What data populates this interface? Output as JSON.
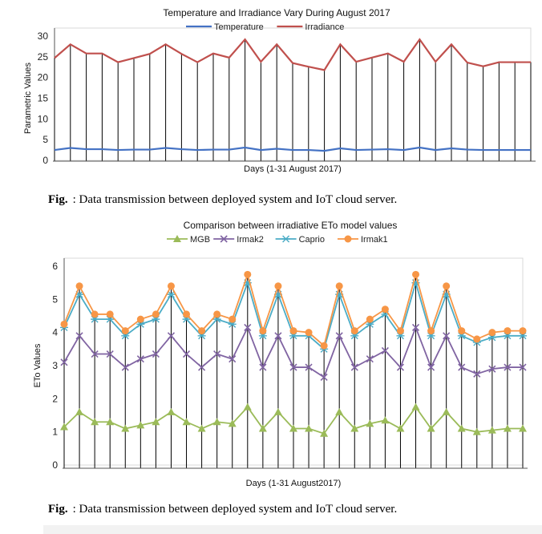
{
  "figures": [
    {
      "caption_label": "Fig.",
      "caption_text": ": Data transmission between deployed system and IoT cloud server."
    },
    {
      "caption_label": "Fig.",
      "caption_text": ": Data transmission between deployed system and IoT cloud server."
    }
  ],
  "chart_data": [
    {
      "type": "line",
      "title": "Temperature and Irradiance Vary During August 2017",
      "xlabel": "Days (1-31 August 2017)",
      "ylabel": "Parametric Values",
      "ylim": [
        0,
        30
      ],
      "yticks": [
        0,
        5,
        10,
        15,
        20,
        25,
        30
      ],
      "legend_position": "top-center",
      "grid": "vertical lines at each day",
      "x": [
        1,
        2,
        3,
        4,
        5,
        6,
        7,
        8,
        9,
        10,
        11,
        12,
        13,
        14,
        15,
        16,
        17,
        18,
        19,
        20,
        21,
        22,
        23,
        24,
        25,
        26,
        27,
        28,
        29,
        30,
        31
      ],
      "series": [
        {
          "name": "Temperature",
          "color": "#4472c4",
          "values": [
            2.5,
            3,
            2.7,
            2.7,
            2.5,
            2.6,
            2.6,
            3,
            2.7,
            2.5,
            2.6,
            2.6,
            3.1,
            2.5,
            2.8,
            2.5,
            2.5,
            2.3,
            2.9,
            2.5,
            2.6,
            2.7,
            2.5,
            3.1,
            2.5,
            2.9,
            2.6,
            2.5,
            2.5,
            2.5,
            2.5
          ]
        },
        {
          "name": "Irradiance",
          "color": "#c0504d",
          "values": [
            24.7,
            28,
            25.8,
            25.8,
            23.7,
            24.7,
            25.7,
            28,
            25.7,
            23.7,
            25.8,
            24.8,
            29.2,
            23.8,
            28,
            23.5,
            22.6,
            21.8,
            28,
            23.8,
            24.8,
            25.8,
            23.8,
            29.2,
            23.8,
            28,
            23.6,
            22.7,
            23.7,
            23.7,
            23.7
          ]
        }
      ]
    },
    {
      "type": "line",
      "title": "Comparison between irradiative ETo model values",
      "xlabel": "Days (1-31 August2017)",
      "ylabel": "ETo Values",
      "ylim": [
        0,
        6
      ],
      "yticks": [
        0,
        1,
        2,
        3,
        4,
        5,
        6
      ],
      "legend_position": "top-center",
      "grid": "vertical lines at each day",
      "x": [
        1,
        2,
        3,
        4,
        5,
        6,
        7,
        8,
        9,
        10,
        11,
        12,
        13,
        14,
        15,
        16,
        17,
        18,
        19,
        20,
        21,
        22,
        23,
        24,
        25,
        26,
        27,
        28,
        29,
        30,
        31
      ],
      "series": [
        {
          "name": "MGB",
          "color": "#9bbb59",
          "marker": "triangle",
          "values": [
            1.15,
            1.6,
            1.3,
            1.3,
            1.1,
            1.2,
            1.3,
            1.6,
            1.3,
            1.1,
            1.3,
            1.25,
            1.75,
            1.1,
            1.6,
            1.1,
            1.1,
            0.95,
            1.6,
            1.1,
            1.25,
            1.35,
            1.1,
            1.75,
            1.1,
            1.6,
            1.1,
            1.0,
            1.05,
            1.1,
            1.1
          ]
        },
        {
          "name": "Irmak2",
          "color": "#8064a2",
          "marker": "x",
          "values": [
            3.1,
            3.9,
            3.35,
            3.35,
            2.95,
            3.2,
            3.35,
            3.9,
            3.35,
            2.95,
            3.35,
            3.2,
            4.15,
            2.95,
            3.9,
            2.95,
            2.95,
            2.65,
            3.9,
            2.95,
            3.2,
            3.45,
            2.95,
            4.15,
            2.95,
            3.9,
            2.95,
            2.75,
            2.9,
            2.95,
            2.95
          ]
        },
        {
          "name": "Caprio",
          "color": "#4bacc6",
          "marker": "star",
          "values": [
            4.15,
            5.15,
            4.4,
            4.4,
            3.9,
            4.25,
            4.4,
            5.15,
            4.4,
            3.9,
            4.4,
            4.25,
            5.5,
            3.9,
            5.15,
            3.9,
            3.9,
            3.5,
            5.15,
            3.9,
            4.25,
            4.55,
            3.9,
            5.5,
            3.9,
            5.15,
            3.9,
            3.7,
            3.85,
            3.9,
            3.9
          ]
        },
        {
          "name": "Irmak1",
          "color": "#f79646",
          "marker": "circle",
          "values": [
            4.25,
            5.4,
            4.55,
            4.55,
            4.05,
            4.4,
            4.55,
            5.4,
            4.55,
            4.05,
            4.55,
            4.4,
            5.75,
            4.05,
            5.4,
            4.05,
            4.0,
            3.6,
            5.4,
            4.05,
            4.4,
            4.7,
            4.05,
            5.75,
            4.05,
            5.4,
            4.05,
            3.8,
            4.0,
            4.05,
            4.05
          ]
        }
      ]
    }
  ]
}
